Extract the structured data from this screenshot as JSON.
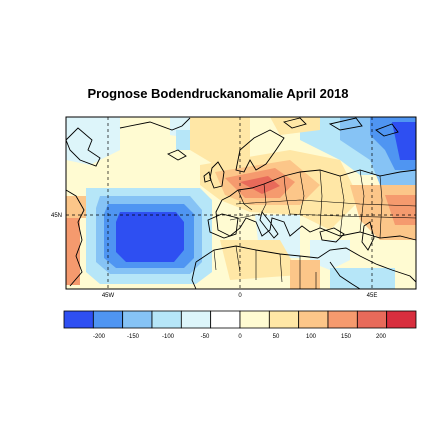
{
  "title": "Prognose Bodendruckanomalie April 2018",
  "map": {
    "lat_label": "45N",
    "lon_labels": [
      "45W",
      "0",
      "45E"
    ]
  },
  "colorbar": {
    "tick_labels": [
      "-200",
      "-150",
      "-100",
      "-50",
      "0",
      "50",
      "100",
      "150",
      "200"
    ],
    "colors": [
      "#2e4ff2",
      "#4f95f2",
      "#86c3f5",
      "#b6e6f8",
      "#ddf5fa",
      "#ffffff",
      "#fffbd2",
      "#ffe7a6",
      "#fcc689",
      "#f59a6e",
      "#e86a5a",
      "#d82e3e"
    ]
  }
}
